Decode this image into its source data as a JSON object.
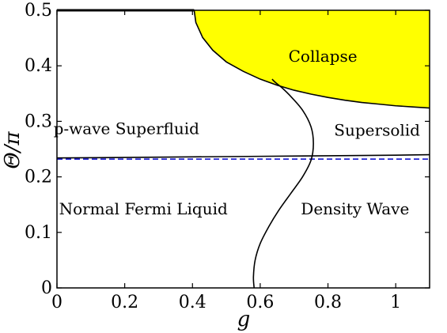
{
  "chart_data": {
    "type": "phase-diagram",
    "title": "",
    "xlabel": "g",
    "ylabel": "Θ/π",
    "xlim": [
      0,
      1.1
    ],
    "ylim": [
      0,
      0.5
    ],
    "xticks": [
      "0",
      "0.2",
      "0.4",
      "0.6",
      "0.8",
      "1"
    ],
    "xtick_values": [
      0,
      0.2,
      0.4,
      0.6,
      0.8,
      1.0
    ],
    "yticks": [
      "0",
      "0.1",
      "0.2",
      "0.3",
      "0.4",
      "0.5"
    ],
    "ytick_values": [
      0,
      0.1,
      0.2,
      0.3,
      0.4,
      0.5
    ],
    "grid": false,
    "collapse_color": "#ffff00",
    "collapse_boundary": {
      "x": [
        0.405,
        0.41,
        0.43,
        0.46,
        0.5,
        0.55,
        0.6,
        0.65,
        0.7,
        0.75,
        0.8,
        0.85,
        0.9,
        0.95,
        1.0,
        1.05,
        1.1
      ],
      "y": [
        0.5,
        0.478,
        0.451,
        0.428,
        0.407,
        0.39,
        0.376,
        0.365,
        0.356,
        0.349,
        0.343,
        0.338,
        0.334,
        0.331,
        0.328,
        0.326,
        0.324
      ]
    },
    "superfluid_boundary": {
      "x": [
        0,
        0.2,
        0.4,
        0.6,
        0.8,
        1.0,
        1.1
      ],
      "y": [
        0.234,
        0.235,
        0.236,
        0.237,
        0.238,
        0.239,
        0.24
      ]
    },
    "dashed_line": {
      "y": 0.232,
      "color": "#0000cc"
    },
    "density_wave_boundary": {
      "x": [
        0.582,
        0.58,
        0.585,
        0.6,
        0.625,
        0.655,
        0.69,
        0.725,
        0.75,
        0.757,
        0.75,
        0.725,
        0.69,
        0.665,
        0.645,
        0.635
      ],
      "y": [
        0.0,
        0.02,
        0.05,
        0.08,
        0.11,
        0.14,
        0.17,
        0.2,
        0.23,
        0.26,
        0.29,
        0.32,
        0.345,
        0.36,
        0.37,
        0.376
      ]
    },
    "top_segment": {
      "x": [
        0,
        0.405
      ],
      "y": [
        0.5,
        0.5
      ]
    },
    "regions": [
      {
        "label": "Collapse",
        "x": 0.785,
        "y": 0.415
      },
      {
        "label": "p-wave Superfluid",
        "x": 0.205,
        "y": 0.285
      },
      {
        "label": "Supersolid",
        "x": 0.945,
        "y": 0.282
      },
      {
        "label": "Normal Fermi Liquid",
        "x": 0.255,
        "y": 0.14
      },
      {
        "label": "Density Wave",
        "x": 0.88,
        "y": 0.14
      }
    ]
  }
}
